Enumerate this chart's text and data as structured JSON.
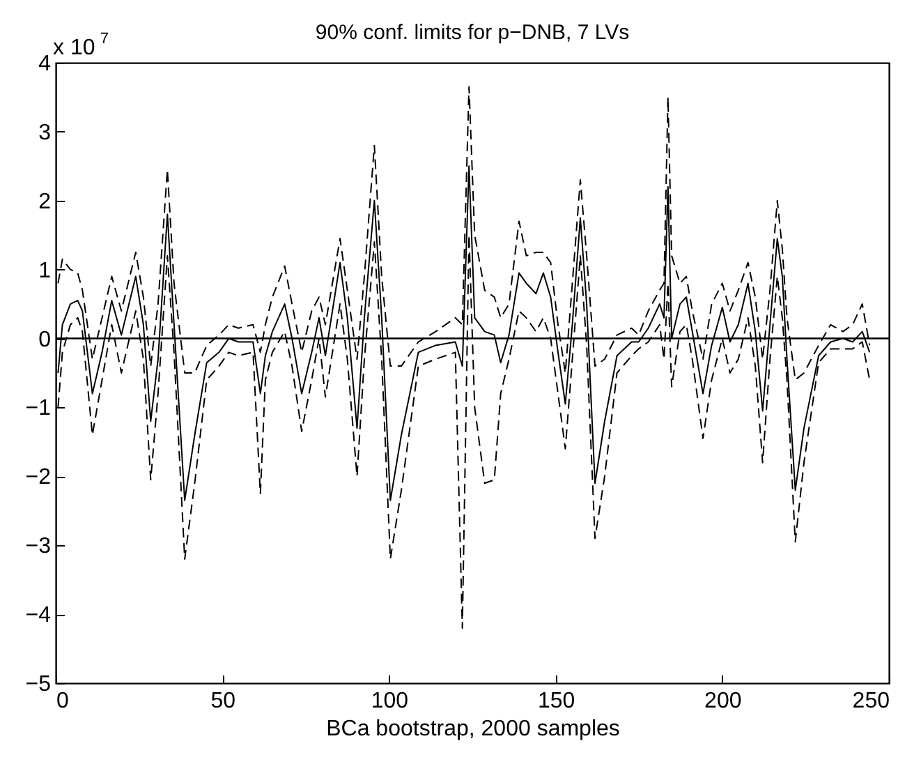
{
  "chart_data": {
    "type": "line",
    "title": "90% conf. limits for p−DNB, 7 LVs",
    "xlabel": "BCa bootstrap, 2000 samples",
    "annotations": [
      "x 10$^{7}$"
    ],
    "xlim": [
      0,
      250
    ],
    "xticks": [
      0,
      50,
      100,
      150,
      200,
      250
    ],
    "ylim": [
      -5,
      4
    ],
    "yticks": [
      -5,
      -4,
      -3,
      -2,
      -1,
      0,
      1,
      2,
      3,
      4
    ],
    "grid": false,
    "marker": "none",
    "x": [
      0.7,
      2,
      4.4,
      6.6,
      8,
      11,
      13.9,
      16.8,
      19.7,
      24,
      26.3,
      28.5,
      30.7,
      33.5,
      35.5,
      38.7,
      41.7,
      45.3,
      49,
      51.9,
      54.8,
      59.2,
      61.4,
      62.9,
      65,
      68.7,
      70.9,
      73.8,
      76.8,
      79,
      80.9,
      85.3,
      87.5,
      90.4,
      92.6,
      95.6,
      97.8,
      100.4,
      103.7,
      108.8,
      114,
      119.9,
      122,
      124,
      125.7,
      128.7,
      131.6,
      133.5,
      136,
      139,
      141.2,
      144.1,
      146.3,
      148.5,
      150.7,
      152.9,
      155,
      157.4,
      159.3,
      161.8,
      164.7,
      168.4,
      172.8,
      174.9,
      177.8,
      181.2,
      182.5,
      183.7,
      184.8,
      187.3,
      189.2,
      191,
      194.2,
      196.8,
      200,
      202.3,
      204.8,
      207.7,
      209.9,
      212.1,
      214.3,
      216.5,
      218,
      219.4,
      221.9,
      224.5,
      228.9,
      232.5,
      236.2,
      239.1,
      242,
      244.2
    ],
    "ref_lines": [
      {
        "axis": "y",
        "value": 0,
        "color": "#000000",
        "line_style": "solid"
      }
    ],
    "series": [
      {
        "color": "#000000",
        "line_style": "solid",
        "values": [
          -0.5,
          0.2,
          0.5,
          0.55,
          0.4,
          -0.8,
          -0.2,
          0.55,
          0.05,
          0.9,
          0.2,
          -1.2,
          -0.3,
          1.8,
          0.2,
          -2.35,
          -1.4,
          -0.35,
          -0.2,
          0,
          -0.05,
          -0.05,
          -0.8,
          -0.25,
          0.1,
          0.5,
          0,
          -0.8,
          -0.2,
          0.3,
          -0.25,
          1.1,
          0.3,
          -1.3,
          0.3,
          2.0,
          0.3,
          -2.35,
          -1.4,
          -0.2,
          -0.1,
          -0.05,
          -0.4,
          2.5,
          0.3,
          0.1,
          0.05,
          -0.35,
          0.05,
          0.95,
          0.8,
          0.65,
          0.95,
          0.6,
          -0.2,
          -0.95,
          0.2,
          1.75,
          0.5,
          -2.1,
          -1.2,
          -0.25,
          -0.05,
          -0.05,
          0.15,
          0.5,
          0.3,
          2.2,
          0,
          0.5,
          0.6,
          0.1,
          -0.8,
          -0.1,
          0.45,
          -0.05,
          0.2,
          0.8,
          0.1,
          -1.05,
          0.2,
          1.45,
          0.9,
          -0.3,
          -2.2,
          -1.3,
          -0.25,
          -0.05,
          0,
          -0.05,
          0.1,
          -0.2
        ]
      },
      {
        "color": "#000000",
        "line_style": "dashed",
        "values": [
          0.8,
          1.15,
          1.0,
          0.95,
          0.7,
          -0.3,
          0.3,
          0.9,
          0.4,
          1.25,
          0.6,
          -0.4,
          0.5,
          2.45,
          0.8,
          -0.5,
          -0.5,
          -0.1,
          0.05,
          0.2,
          0.15,
          0.2,
          -0.2,
          0.2,
          0.6,
          1.05,
          0.5,
          -0.2,
          0.4,
          0.6,
          0.2,
          1.45,
          0.7,
          -0.3,
          0.9,
          2.8,
          0.9,
          -0.4,
          -0.4,
          -0.05,
          0.1,
          0.3,
          0.2,
          3.65,
          1.5,
          0.7,
          0.6,
          0.3,
          0.5,
          1.7,
          1.2,
          1.25,
          1.25,
          1.1,
          0.2,
          -0.5,
          0.8,
          2.3,
          1.2,
          -0.4,
          -0.3,
          0.05,
          0.15,
          0.05,
          0.4,
          0.7,
          0.8,
          3.5,
          1.2,
          0.8,
          0.9,
          0.4,
          -0.3,
          0.5,
          0.8,
          0.4,
          0.7,
          1.1,
          0.6,
          -0.3,
          0.7,
          2.0,
          1.3,
          0.3,
          -0.6,
          -0.5,
          -0.1,
          0.2,
          0.1,
          0.2,
          0.5,
          -0.1
        ]
      },
      {
        "color": "#000000",
        "line_style": "dashed",
        "values": [
          -1.0,
          -0.2,
          0.2,
          0.3,
          0.1,
          -1.4,
          -0.6,
          0.2,
          -0.5,
          0.4,
          -0.3,
          -2.05,
          -0.8,
          1.2,
          -0.2,
          -3.2,
          -2.1,
          -0.6,
          -0.4,
          -0.2,
          -0.25,
          -0.2,
          -2.25,
          -0.6,
          -0.2,
          0.1,
          -0.4,
          -1.35,
          -0.6,
          0.0,
          -0.85,
          0.5,
          -0.3,
          -2.0,
          -0.3,
          1.4,
          -0.3,
          -3.2,
          -2.2,
          -0.4,
          -0.3,
          -0.2,
          -4.2,
          1.5,
          -1.0,
          -2.1,
          -2.05,
          -0.8,
          -0.3,
          0.4,
          0.3,
          0.1,
          0.3,
          0.0,
          -0.8,
          -1.6,
          -0.3,
          1.2,
          -0.1,
          -2.9,
          -2.0,
          -0.5,
          -0.25,
          -0.15,
          -0.05,
          0.2,
          -0.3,
          0.8,
          -0.7,
          0.1,
          0.2,
          -0.3,
          -1.45,
          -0.6,
          0.0,
          -0.5,
          -0.3,
          0.3,
          -0.4,
          -1.8,
          -0.3,
          0.9,
          0.3,
          -0.6,
          -2.95,
          -1.8,
          -0.35,
          -0.15,
          -0.15,
          -0.15,
          -0.05,
          -0.6
        ]
      }
    ]
  }
}
